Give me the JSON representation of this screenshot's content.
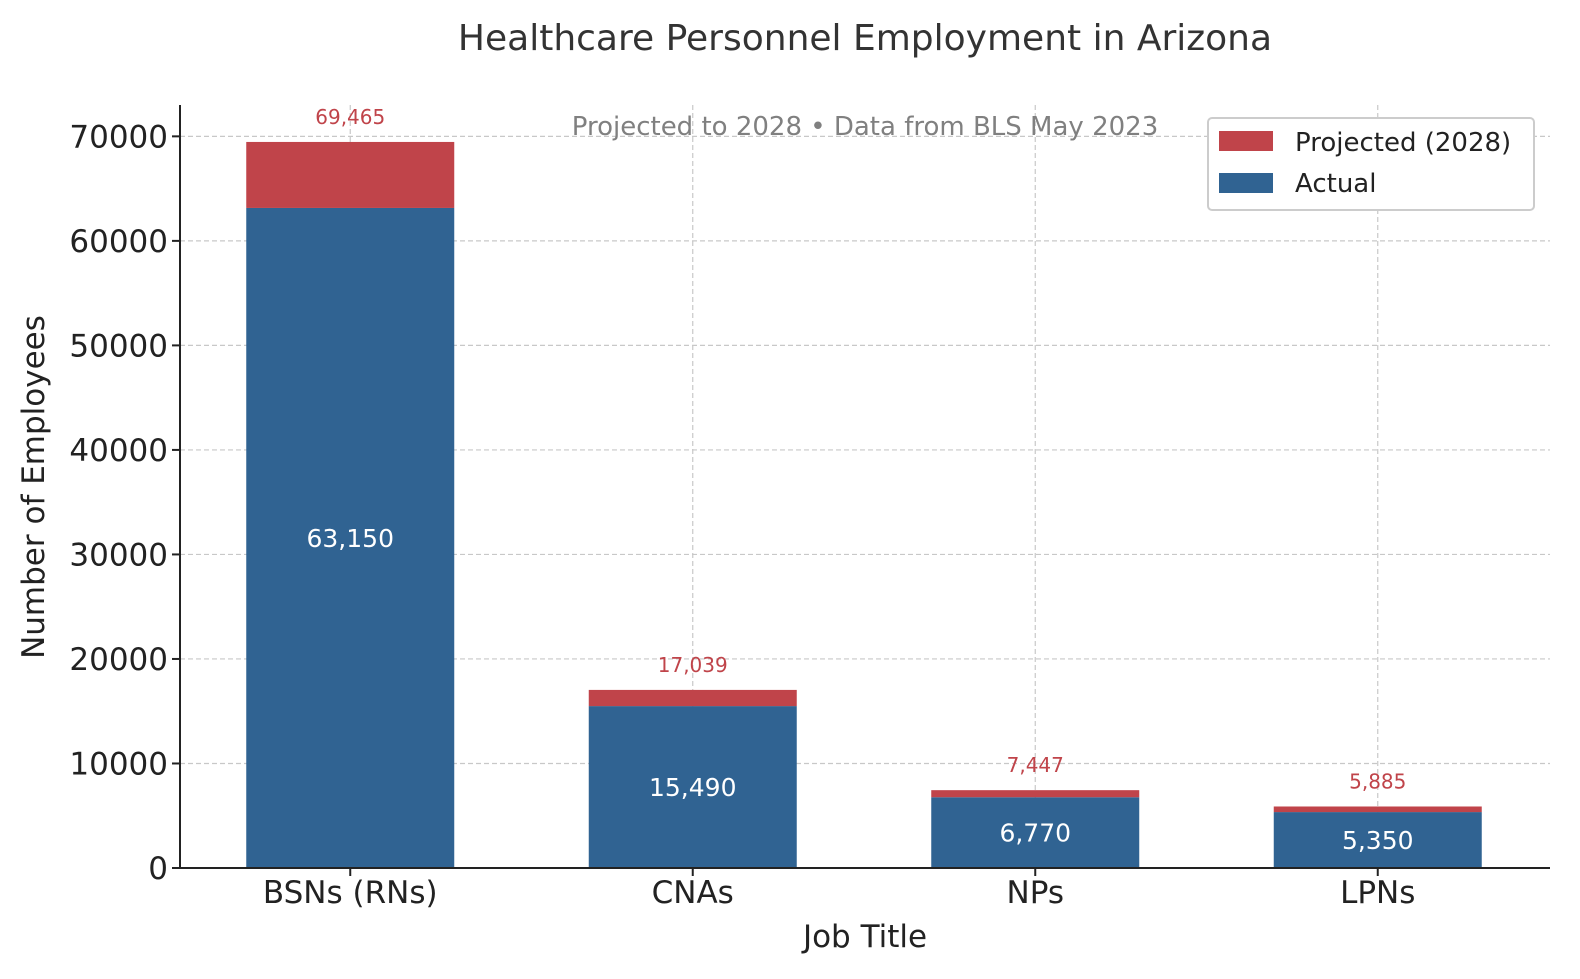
{
  "chart_data": {
    "type": "bar",
    "stacked": true,
    "title": "Healthcare Personnel Employment in Arizona",
    "subtitle": "Projected to 2028 • Data from BLS May 2023",
    "xlabel": "Job Title",
    "ylabel": "Number of Employees",
    "ylim": [
      0,
      73000
    ],
    "yticks": [
      0,
      10000,
      20000,
      30000,
      40000,
      50000,
      60000,
      70000
    ],
    "ytick_labels": [
      "0",
      "10000",
      "20000",
      "30000",
      "40000",
      "50000",
      "60000",
      "70000"
    ],
    "grid": true,
    "legend_position": "top-right",
    "categories": [
      "BSNs (RNs)",
      "CNAs",
      "NPs",
      "LPNs"
    ],
    "series": [
      {
        "name": "Actual",
        "values": [
          63150,
          15490,
          6770,
          5350
        ],
        "color": "#306392"
      },
      {
        "name": "Projected (2028)",
        "values": [
          6315,
          1549,
          677,
          535
        ],
        "color": "#c0444a"
      }
    ],
    "actual_labels": [
      "63,150",
      "15,490",
      "6,770",
      "5,350"
    ],
    "total_labels": [
      "69,465",
      "17,039",
      "7,447",
      "5,885"
    ],
    "legend_order": [
      "Projected (2028)",
      "Actual"
    ]
  }
}
